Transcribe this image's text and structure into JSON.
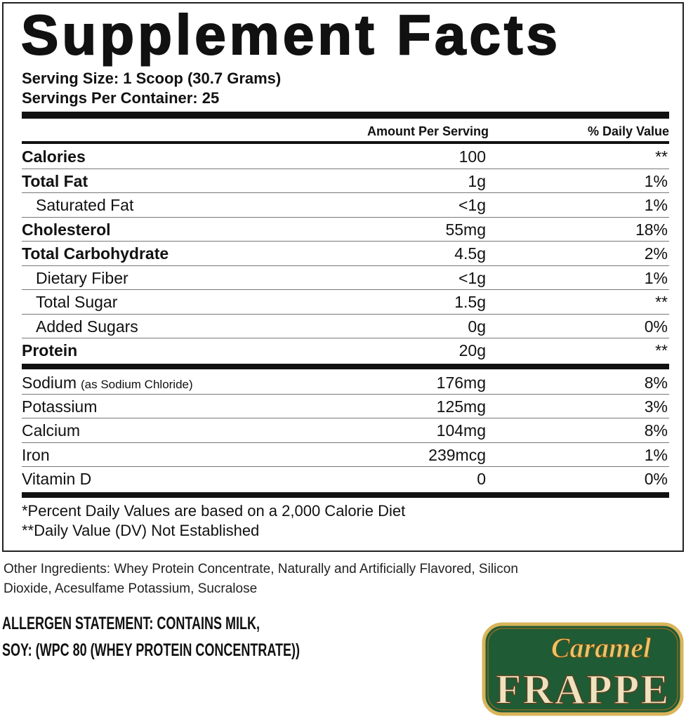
{
  "title": "Supplement Facts",
  "serving_size": "Serving Size: 1 Scoop (30.7 Grams)",
  "servings_per_container": "Servings Per Container: 25",
  "header": {
    "amount": "Amount Per Serving",
    "daily_value": "% Daily Value"
  },
  "rows": [
    {
      "name": "Calories",
      "amount": "100",
      "dv": "**",
      "bold": true
    },
    {
      "name": "Total Fat",
      "amount": "1g",
      "dv": "1%",
      "bold": true
    },
    {
      "name": "Saturated Fat",
      "amount": "<1g",
      "dv": "1%",
      "indent": true
    },
    {
      "name": "Cholesterol",
      "amount": "55mg",
      "dv": "18%",
      "bold": true
    },
    {
      "name": "Total Carbohydrate",
      "amount": "4.5g",
      "dv": "2%",
      "bold": true
    },
    {
      "name": "Dietary Fiber",
      "amount": "<1g",
      "dv": "1%",
      "indent": true
    },
    {
      "name": "Total Sugar",
      "amount": "1.5g",
      "dv": "**",
      "indent": true
    },
    {
      "name": "Added Sugars",
      "amount": "0g",
      "dv": "0%",
      "indent": true
    },
    {
      "name": "Protein",
      "amount": "20g",
      "dv": "**",
      "bold": true
    }
  ],
  "minerals": [
    {
      "name": "Sodium",
      "note": "(as Sodium Chloride)",
      "amount": "176mg",
      "dv": "8%"
    },
    {
      "name": "Potassium",
      "amount": "125mg",
      "dv": "3%"
    },
    {
      "name": "Calcium",
      "amount": "104mg",
      "dv": "8%"
    },
    {
      "name": "Iron",
      "amount": "239mcg",
      "dv": "1%"
    },
    {
      "name": "Vitamin D",
      "amount": "0",
      "dv": "0%"
    }
  ],
  "footnotes": [
    "*Percent Daily Values are based on a 2,000 Calorie Diet",
    "**Daily Value (DV) Not Established"
  ],
  "other_ingredients": [
    "Other Ingredients: Whey Protein Concentrate, Naturally and Artificially Flavored, Silicon",
    "Dioxide, Acesulfame Potassium, Sucralose"
  ],
  "allergen": [
    "ALLERGEN STATEMENT: CONTAINS MILK,",
    "SOY: (WPC 80 (WHEY PROTEIN CONCENTRATE))"
  ],
  "logo": {
    "top": "Caramel",
    "bottom": "FRAPPE"
  }
}
